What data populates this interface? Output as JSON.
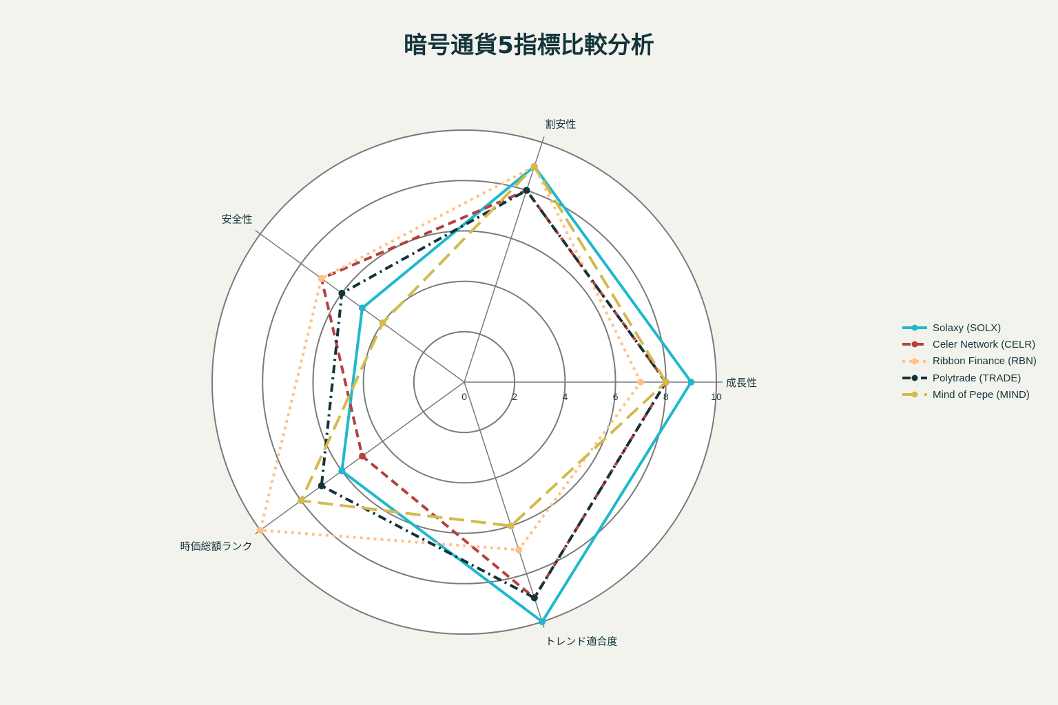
{
  "chart_data": {
    "type": "radar",
    "title": "暗号通貨5指標比較分析",
    "axes": [
      "成長性",
      "割安性",
      "安全性",
      "時価総額ランク",
      "トレンド適合度"
    ],
    "radial_ticks": [
      "0",
      "2",
      "4",
      "6",
      "8",
      "10"
    ],
    "radial_range": [
      0,
      10
    ],
    "series": [
      {
        "name": "Solaxy (SOLX)",
        "values": [
          9,
          9,
          5,
          6,
          10
        ],
        "color": "#1fb8cd",
        "dash": "solid"
      },
      {
        "name": "Celer Network (CELR)",
        "values": [
          8,
          8,
          7,
          5,
          9
        ],
        "color": "#b4413c",
        "dash": "dash"
      },
      {
        "name": "Ribbon Finance (RBN)",
        "values": [
          7,
          9,
          7,
          10,
          7
        ],
        "color": "#ffc185",
        "dash": "dot"
      },
      {
        "name": "Polytrade (TRADE)",
        "values": [
          8,
          8,
          6,
          7,
          9
        ],
        "color": "#13343b",
        "dash": "dashdot"
      },
      {
        "name": "Mind of Pepe (MIND)",
        "values": [
          8,
          9,
          4,
          8,
          6
        ],
        "color": "#d2ba4c",
        "dash": "longdash"
      }
    ],
    "legend_position": "right"
  }
}
